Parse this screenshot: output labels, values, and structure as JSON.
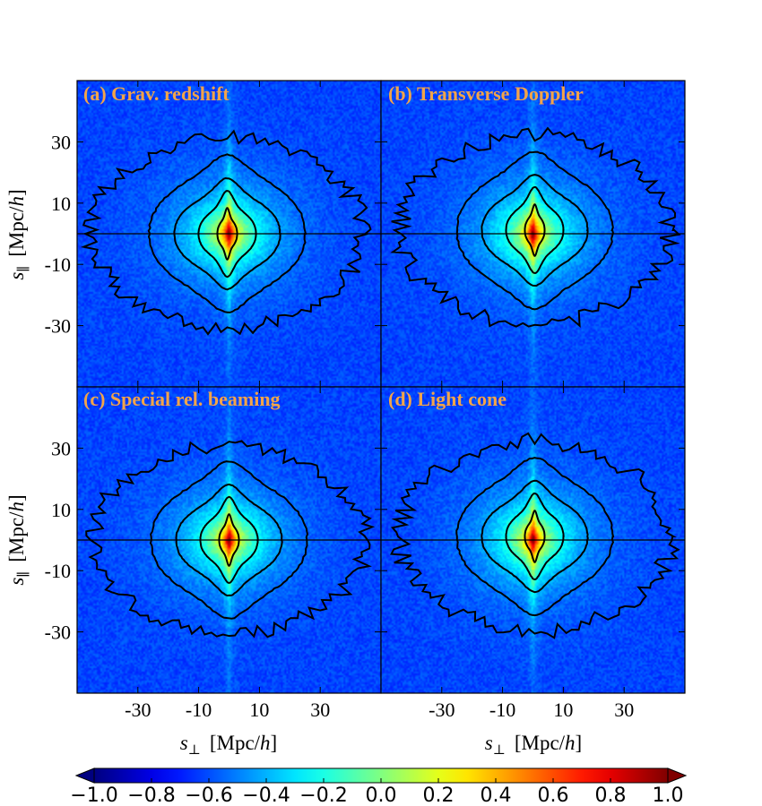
{
  "chart_data": {
    "type": "heatmap",
    "layout": "2x2 shared axes",
    "panels": [
      {
        "id": "a",
        "title": "(a) Grav. redshift",
        "variant": "gravitational redshift"
      },
      {
        "id": "b",
        "title": "(b) Transverse Doppler",
        "variant": "transverse doppler"
      },
      {
        "id": "c",
        "title": "(c) Special rel. beaming",
        "variant": "special relativistic beaming"
      },
      {
        "id": "d",
        "title": "(d) Light cone",
        "variant": "light cone"
      }
    ],
    "x_range": [
      -50,
      50
    ],
    "y_range": [
      -50,
      50
    ],
    "x_ticks": [
      -30,
      -10,
      10,
      30
    ],
    "x_tick_labels": [
      "-30",
      "-10",
      "10",
      "30"
    ],
    "y_ticks": [
      30,
      10,
      -10,
      -30
    ],
    "y_tick_labels": [
      "30",
      "10",
      "-10",
      "-30"
    ],
    "xlabel": {
      "symbol": "s",
      "subscript": "⊥",
      "unit_open": "[Mpc/",
      "unit_italic": "h",
      "unit_close": "]"
    },
    "ylabel": {
      "symbol": "s",
      "subscript": "∥",
      "unit_open": "[Mpc/",
      "unit_italic": "h",
      "unit_close": "]"
    },
    "zero_line_y": 0,
    "colorbar": {
      "colormap": "jet",
      "range": [
        -1.0,
        1.0
      ],
      "ticks": [
        -1.0,
        -0.8,
        -0.6,
        -0.4,
        -0.2,
        0.0,
        0.2,
        0.4,
        0.6,
        0.8,
        1.0
      ],
      "tick_labels": [
        "−1.0",
        "−0.8",
        "−0.6",
        "−0.4",
        "−0.2",
        "0.0",
        "0.2",
        "0.4",
        "0.6",
        "0.8",
        "1.0"
      ],
      "extend": "both"
    },
    "contour_levels": [
      0.35,
      0.6,
      0.8,
      0.9
    ]
  }
}
